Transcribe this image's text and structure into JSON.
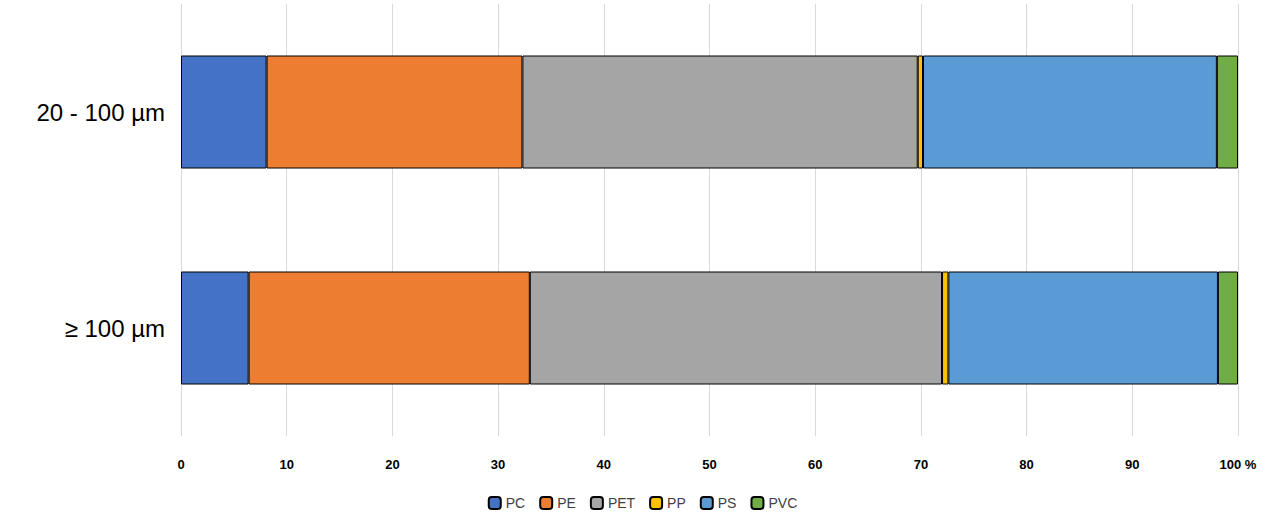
{
  "chart_data": {
    "type": "bar",
    "orientation": "horizontal",
    "stacked": true,
    "grid": true,
    "legend": "bottom",
    "categories": [
      "20 - 100 µm",
      "≥ 100 µm"
    ],
    "series": [
      {
        "name": "PC",
        "color": "#4472c4",
        "values": [
          8.1,
          6.4
        ]
      },
      {
        "name": "PE",
        "color": "#ed7d31",
        "values": [
          24.2,
          26.6
        ]
      },
      {
        "name": "PET",
        "color": "#a5a5a5",
        "values": [
          37.4,
          39.0
        ]
      },
      {
        "name": "PP",
        "color": "#ffc000",
        "values": [
          0.5,
          0.6
        ]
      },
      {
        "name": "PS",
        "color": "#5b9bd5",
        "values": [
          27.8,
          25.5
        ]
      },
      {
        "name": "PVC",
        "color": "#70ad47",
        "values": [
          2.0,
          1.9
        ]
      }
    ],
    "xlim": [
      0,
      100
    ],
    "xticks": [
      0,
      10,
      20,
      30,
      40,
      50,
      60,
      70,
      80,
      90,
      {
        "value": 100,
        "label": "100 %"
      }
    ]
  }
}
